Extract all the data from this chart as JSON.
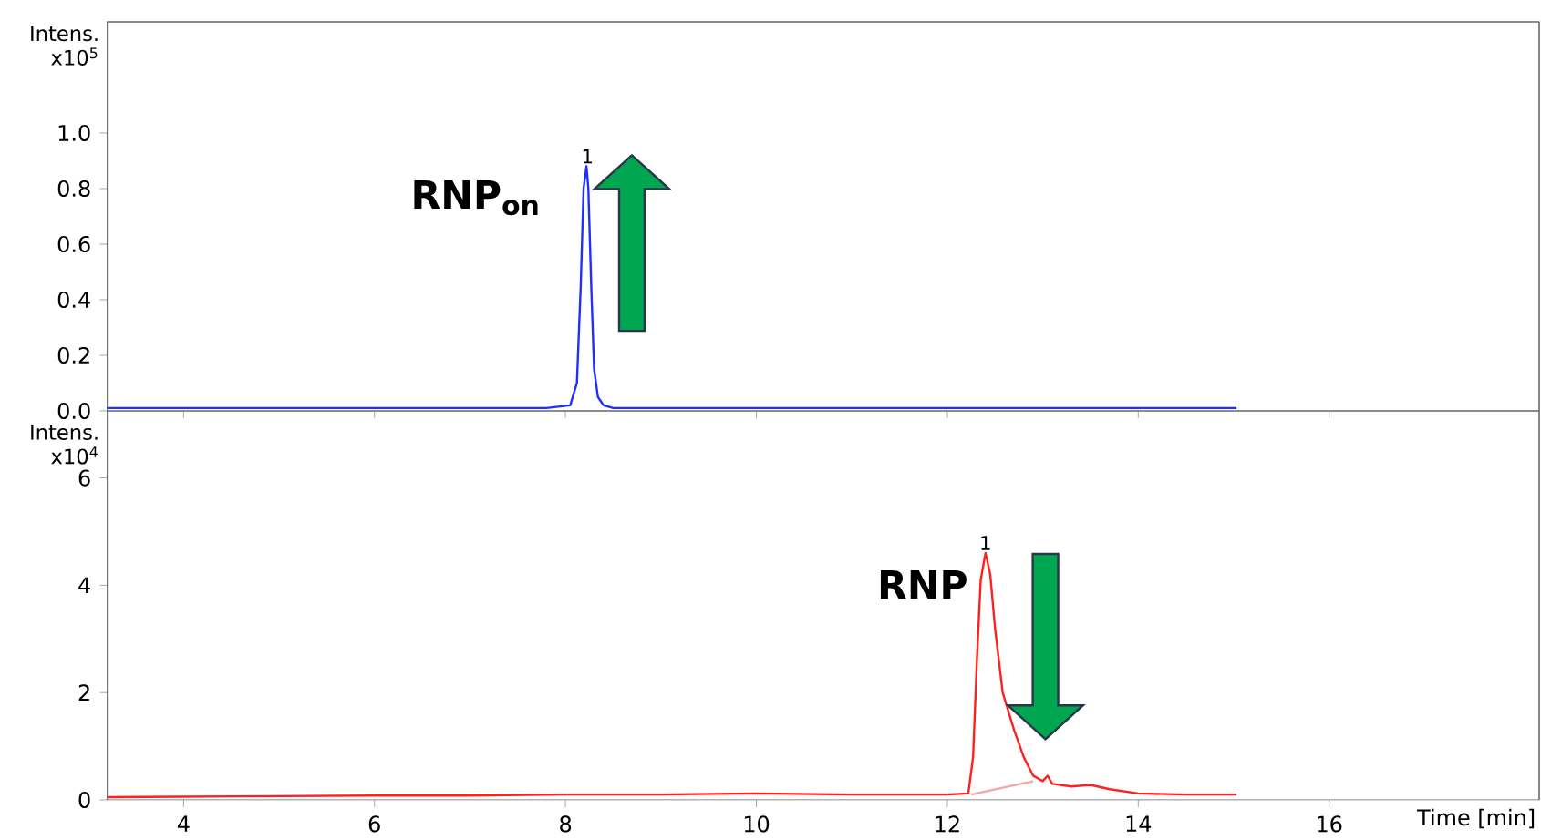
{
  "chart_data": [
    {
      "type": "line",
      "ylabel": "Intens. x10$^{5}$",
      "xlim": [
        3.2,
        18.2
      ],
      "ylim": [
        0,
        1.4
      ],
      "xticks": [
        4,
        6,
        8,
        10,
        12,
        14,
        16
      ],
      "tick_labels": "y",
      "yticks": [
        {
          "value": 0,
          "label": "0.0"
        },
        0.2,
        0.4,
        0.6,
        0.8,
        {
          "value": 1,
          "label": "1.0"
        }
      ],
      "series": [
        {
          "color": "#1f2fff",
          "x": [
            3.2,
            4.0,
            5.0,
            6.0,
            7.0,
            7.8,
            8.05,
            8.12,
            8.16,
            8.19,
            8.22,
            8.24,
            8.27,
            8.3,
            8.34,
            8.4,
            8.5,
            9.0,
            10.0,
            11.0,
            12.0,
            13.0,
            14.0,
            15.03
          ],
          "values": [
            0.01,
            0.01,
            0.01,
            0.01,
            0.01,
            0.01,
            0.02,
            0.1,
            0.45,
            0.8,
            0.88,
            0.8,
            0.45,
            0.15,
            0.05,
            0.02,
            0.01,
            0.01,
            0.01,
            0.01,
            0.01,
            0.01,
            0.01,
            0.01
          ]
        }
      ],
      "annotations": [
        {
          "text": "1",
          "x": 8.23,
          "y": 0.88
        },
        "RNP$_{on}$"
      ]
    },
    {
      "type": "line",
      "ylabel": "Intens. x10$^{4}$",
      "xlabel": "Time [min]",
      "xlim": [
        3.2,
        18.2
      ],
      "ylim": [
        0,
        7.25
      ],
      "xticks": [
        4,
        6,
        8,
        10,
        12,
        14,
        16
      ],
      "yticks": [
        0,
        2,
        4,
        6
      ],
      "series": [
        {
          "color": "#f4a6a6",
          "x": [
            12.25,
            12.9
          ],
          "values": [
            0.1,
            0.35
          ]
        },
        {
          "color": "#ff2020",
          "x": [
            3.2,
            4.0,
            5.0,
            6.0,
            7.0,
            8.0,
            9.0,
            10.0,
            11.0,
            12.0,
            12.22,
            12.27,
            12.31,
            12.35,
            12.4,
            12.45,
            12.5,
            12.58,
            12.7,
            12.8,
            12.9,
            13.0,
            13.05,
            13.1,
            13.3,
            13.5,
            13.7,
            14.0,
            14.5,
            15.03
          ],
          "values": [
            0.05,
            0.06,
            0.07,
            0.08,
            0.08,
            0.1,
            0.1,
            0.12,
            0.1,
            0.1,
            0.12,
            0.8,
            2.6,
            4.1,
            4.6,
            4.2,
            3.2,
            2.0,
            1.3,
            0.8,
            0.45,
            0.35,
            0.45,
            0.3,
            0.25,
            0.28,
            0.2,
            0.12,
            0.1,
            0.1
          ]
        }
      ],
      "annotations": [
        {
          "text": "1",
          "x": 12.4,
          "y": 4.6
        },
        "RNP"
      ]
    }
  ]
}
